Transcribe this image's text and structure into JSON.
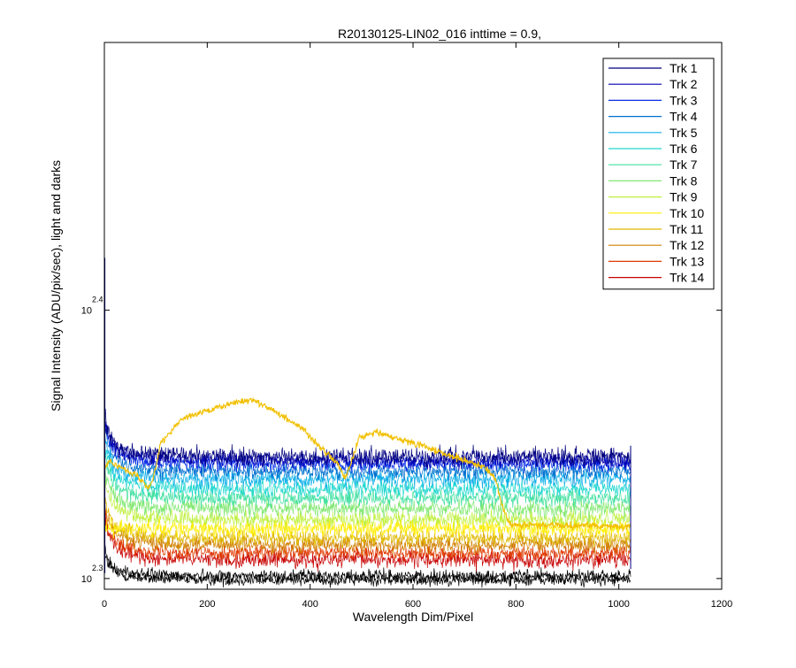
{
  "chart_data": {
    "type": "line",
    "title": "R20130125-LIN02_016 inttime = 0.9,",
    "xlabel": "Wavelength Dim/Pixel",
    "ylabel": "Signal Intensity (ADU/pix/sec), light and darks",
    "xlim": [
      0,
      1200
    ],
    "ylim_log10": [
      2.296,
      2.4998
    ],
    "y_scale": "log",
    "x_ticks": [
      0,
      200,
      400,
      600,
      800,
      1000,
      1200
    ],
    "y_ticks": [
      {
        "base": "10",
        "exp": "2.3",
        "log10_value": 2.3
      },
      {
        "base": "10",
        "exp": "2.4",
        "log10_value": 2.4
      }
    ],
    "grid": false,
    "legend_position": "top-right",
    "n_pixels": 1024,
    "series": [
      {
        "name": "Trk 1",
        "color": "#000080",
        "level_log10": 2.3455,
        "noise": 0.0032,
        "dark_level_log10": 2.2995
      },
      {
        "name": "Trk 2",
        "color": "#0000b4",
        "level_log10": 2.344,
        "noise": 0.0028
      },
      {
        "name": "Trk 3",
        "color": "#0a2ee6",
        "level_log10": 2.3425,
        "noise": 0.0025
      },
      {
        "name": "Trk 4",
        "color": "#0070d0",
        "level_log10": 2.34,
        "noise": 0.003
      },
      {
        "name": "Trk 5",
        "color": "#10b0e8",
        "level_log10": 2.337,
        "noise": 0.003
      },
      {
        "name": "Trk 6",
        "color": "#20d8d0",
        "level_log10": 2.3335,
        "noise": 0.003
      },
      {
        "name": "Trk 7",
        "color": "#40e0a0",
        "level_log10": 2.33,
        "noise": 0.0032
      },
      {
        "name": "Trk 8",
        "color": "#80e870",
        "level_log10": 2.326,
        "noise": 0.0032
      },
      {
        "name": "Trk 9",
        "color": "#c0f040",
        "level_log10": 2.322,
        "noise": 0.0032
      },
      {
        "name": "Trk 10",
        "color": "#ffee00",
        "level_log10": 2.3185,
        "noise": 0.003,
        "profile": {
          "x": [
            0,
            10,
            30,
            60,
            85,
            95,
            110,
            150,
            200,
            250,
            290,
            330,
            380,
            420,
            455,
            468,
            480,
            495,
            530,
            600,
            680,
            740,
            760,
            775,
            790,
            1024
          ],
          "y_log10": [
            2.34,
            2.344,
            2.3415,
            2.339,
            2.3335,
            2.337,
            2.3505,
            2.3595,
            2.3625,
            2.3655,
            2.3665,
            2.3625,
            2.3565,
            2.349,
            2.3425,
            2.3375,
            2.343,
            2.3525,
            2.3545,
            2.3505,
            2.3455,
            2.3415,
            2.337,
            2.326,
            2.32,
            2.3195
          ],
          "noise": 0.0012
        }
      },
      {
        "name": "Trk 11",
        "color": "#e0b800",
        "level_log10": 2.315,
        "noise": 0.0028
      },
      {
        "name": "Trk 12",
        "color": "#d08000",
        "level_log10": 2.3125,
        "noise": 0.0028
      },
      {
        "name": "Trk 13",
        "color": "#e03a00",
        "level_log10": 2.3095,
        "noise": 0.0028
      },
      {
        "name": "Trk 14",
        "color": "#c80000",
        "level_log10": 2.307,
        "noise": 0.003
      }
    ]
  }
}
